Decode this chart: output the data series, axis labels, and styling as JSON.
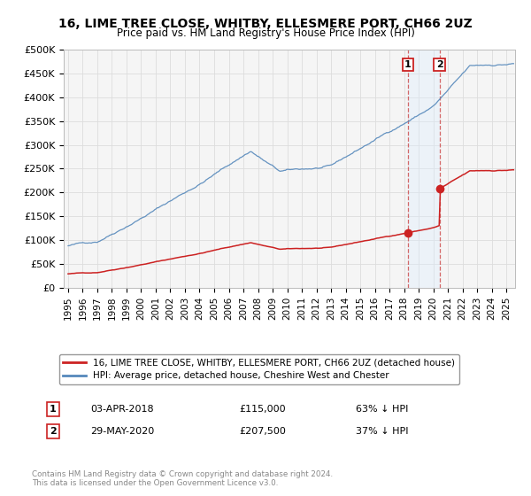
{
  "title": "16, LIME TREE CLOSE, WHITBY, ELLESMERE PORT, CH66 2UZ",
  "subtitle": "Price paid vs. HM Land Registry's House Price Index (HPI)",
  "ylim": [
    0,
    500000
  ],
  "yticks": [
    0,
    50000,
    100000,
    150000,
    200000,
    250000,
    300000,
    350000,
    400000,
    450000,
    500000
  ],
  "ytick_labels": [
    "£0",
    "£50K",
    "£100K",
    "£150K",
    "£200K",
    "£250K",
    "£300K",
    "£350K",
    "£400K",
    "£450K",
    "£500K"
  ],
  "hpi_color": "#5588bb",
  "price_color": "#cc2222",
  "transaction_1": {
    "date_num": 2018.25,
    "price": 115000,
    "label": "1",
    "date_str": "03-APR-2018",
    "pct": "63% ↓ HPI"
  },
  "transaction_2": {
    "date_num": 2020.42,
    "price": 207500,
    "label": "2",
    "date_str": "29-MAY-2020",
    "pct": "37% ↓ HPI"
  },
  "legend_line1": "16, LIME TREE CLOSE, WHITBY, ELLESMERE PORT, CH66 2UZ (detached house)",
  "legend_line2": "HPI: Average price, detached house, Cheshire West and Chester",
  "footnote": "Contains HM Land Registry data © Crown copyright and database right 2024.\nThis data is licensed under the Open Government Licence v3.0.",
  "background_color": "#ffffff",
  "plot_bg_color": "#f5f5f5",
  "grid_color": "#dddddd",
  "shade_color": "#ddeeff"
}
